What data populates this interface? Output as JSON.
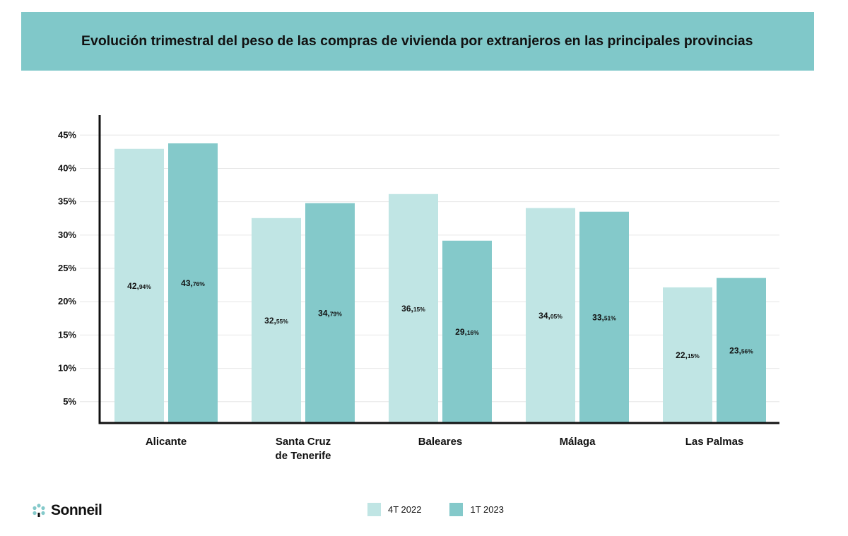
{
  "chart_data": {
    "type": "bar",
    "title": "Evolución trimestral del peso de las compras de vivienda por extranjeros en las principales provincias",
    "categories": [
      [
        "Alicante"
      ],
      [
        "Santa Cruz",
        "de Tenerife"
      ],
      [
        "Baleares"
      ],
      [
        "Málaga"
      ],
      [
        "Las Palmas"
      ]
    ],
    "series": [
      {
        "name": "4T 2022",
        "color": "#c0e5e4",
        "values": [
          42.94,
          32.55,
          36.15,
          34.05,
          22.15
        ],
        "labels": [
          "42,94%",
          "32,55%",
          "36,15%",
          "34,05%",
          "22,15%"
        ]
      },
      {
        "name": "1T 2023",
        "color": "#84c9ca",
        "values": [
          43.76,
          34.79,
          29.16,
          33.51,
          23.56
        ],
        "labels": [
          "43,76%",
          "34,79%",
          "29,16%",
          "33,51%",
          "23,56%"
        ]
      }
    ],
    "yticks": [
      5,
      10,
      15,
      20,
      25,
      30,
      35,
      40,
      45
    ],
    "ytick_labels": [
      "5%",
      "10%",
      "15%",
      "20%",
      "25%",
      "30%",
      "35%",
      "40%",
      "45%"
    ],
    "ylim": [
      1.8,
      48
    ],
    "grid": true,
    "legend_position": "bottom-center",
    "xlabel": "",
    "ylabel": ""
  },
  "banner_color": "#80c8c9",
  "logo": {
    "text": "Sonneil",
    "color": "#84c9ca"
  }
}
